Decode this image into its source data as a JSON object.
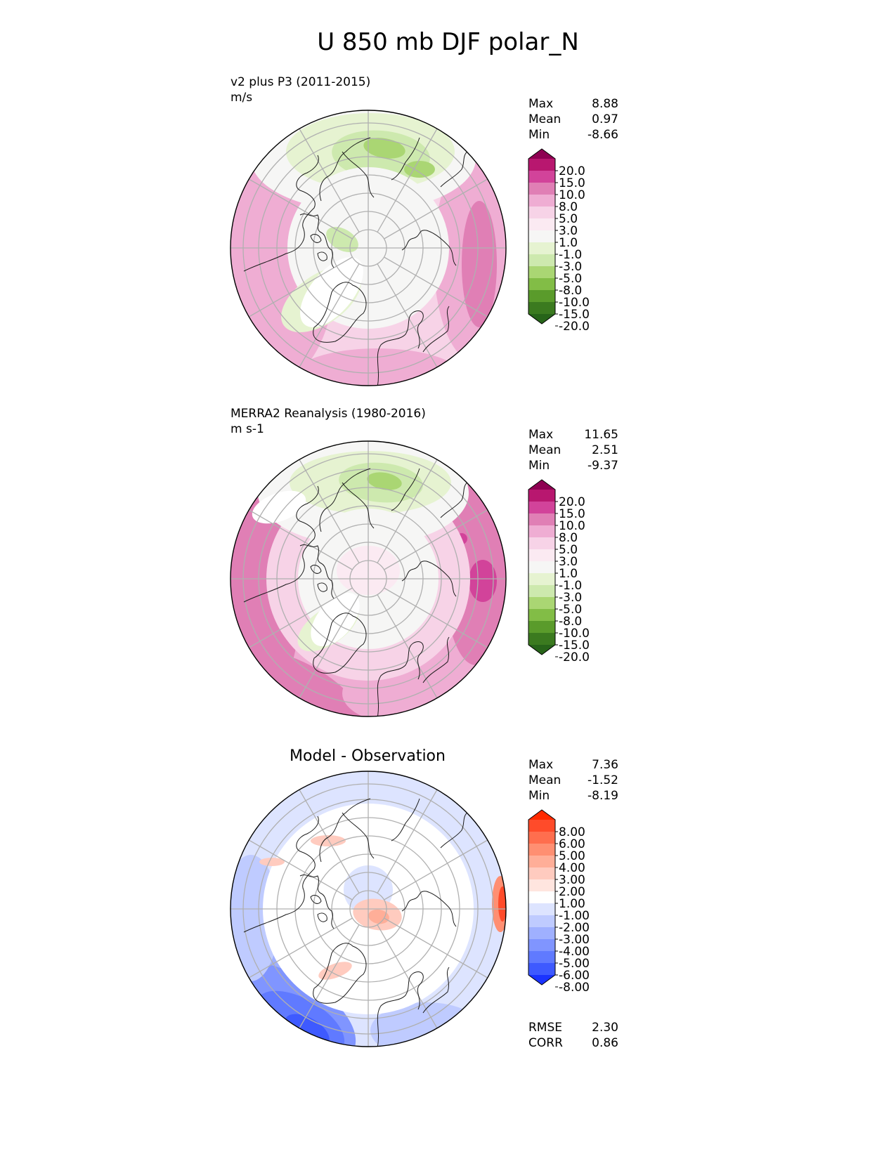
{
  "figure": {
    "title": "U 850 mb DJF polar_N"
  },
  "chart_data": [
    {
      "type": "heatmap",
      "projection": "north-polar-stereographic",
      "title": "",
      "subtitle_lines": [
        "v2 plus P3 (2011-2015)",
        "m/s"
      ],
      "stats": {
        "Max": "8.88",
        "Mean": "0.97",
        "Min": "-8.66"
      },
      "colorbar": {
        "ticks": [
          "20.0",
          "15.0",
          "10.0",
          "8.0",
          "5.0",
          "3.0",
          "1.0",
          "-1.0",
          "-3.0",
          "-5.0",
          "-8.0",
          "-10.0",
          "-15.0",
          "-20.0"
        ],
        "colors": [
          "#8e0152",
          "#b8176f",
          "#d2439a",
          "#e07fb5",
          "#efadd3",
          "#f7d3e7",
          "#fbeaf2",
          "#f6f6f5",
          "#e6f3d1",
          "#cde9ae",
          "#aad673",
          "#82bd46",
          "#5a9b2b",
          "#3b7a1f",
          "#276419"
        ],
        "extend": "both"
      },
      "field_summary": {
        "north_america_atlantic": "positive",
        "arctic_center": "near-zero",
        "greenland_siberia": "negative"
      }
    },
    {
      "type": "heatmap",
      "projection": "north-polar-stereographic",
      "title": "",
      "subtitle_lines": [
        "MERRA2 Reanalysis (1980-2016)",
        "m s-1"
      ],
      "stats": {
        "Max": "11.65",
        "Mean": "2.51",
        "Min": "-9.37"
      },
      "colorbar": {
        "ticks": [
          "20.0",
          "15.0",
          "10.0",
          "8.0",
          "5.0",
          "3.0",
          "1.0",
          "-1.0",
          "-3.0",
          "-5.0",
          "-8.0",
          "-10.0",
          "-15.0",
          "-20.0"
        ],
        "colors": [
          "#8e0152",
          "#b8176f",
          "#d2439a",
          "#e07fb5",
          "#efadd3",
          "#f7d3e7",
          "#fbeaf2",
          "#f6f6f5",
          "#e6f3d1",
          "#cde9ae",
          "#aad673",
          "#82bd46",
          "#5a9b2b",
          "#3b7a1f",
          "#276419"
        ],
        "extend": "both"
      },
      "field_summary": {
        "north_america_atlantic": "positive",
        "arctic_center": "weak positive",
        "greenland_siberia": "negative"
      }
    },
    {
      "type": "heatmap",
      "projection": "north-polar-stereographic",
      "title": "Model - Observation",
      "subtitle_lines": [],
      "stats": {
        "Max": "7.36",
        "Mean": "-1.52",
        "Min": "-8.19"
      },
      "extra_stats": {
        "RMSE": "2.30",
        "CORR": "0.86"
      },
      "colorbar": {
        "ticks": [
          "8.00",
          "6.00",
          "5.00",
          "4.00",
          "3.00",
          "2.00",
          "1.00",
          "-1.00",
          "-2.00",
          "-3.00",
          "-4.00",
          "-5.00",
          "-6.00",
          "-8.00"
        ],
        "colors": [
          "#ff2a00",
          "#ff4b2a",
          "#ff6e4e",
          "#ff8f72",
          "#ffae98",
          "#ffcbbf",
          "#ffe5df",
          "#ffffff",
          "#dde4ff",
          "#bfcbff",
          "#9fb0ff",
          "#8095ff",
          "#607aff",
          "#3e5aff",
          "#1a33ff"
        ],
        "extend": "both"
      },
      "field_summary": {
        "atlantic_europe": "negative",
        "arctic_center": "positive",
        "pacific_edge": "positive"
      }
    }
  ]
}
